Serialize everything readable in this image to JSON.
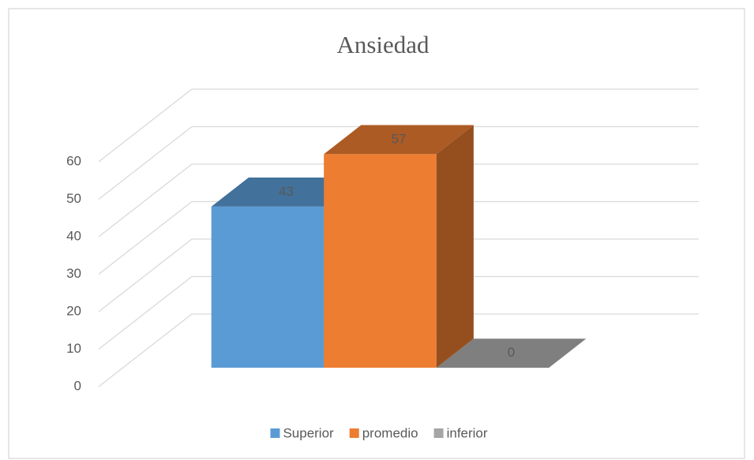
{
  "chart_data": {
    "type": "bar3d",
    "title": "Ansiedad",
    "categories": [
      null
    ],
    "series": [
      {
        "name": "Superior",
        "color": "#5b9bd5",
        "values": [
          43
        ]
      },
      {
        "name": "promedio",
        "color": "#ed7d31",
        "values": [
          57
        ]
      },
      {
        "name": "inferior",
        "color": "#a5a5a5",
        "values": [
          0
        ]
      }
    ],
    "ylim": [
      0,
      60
    ],
    "yticks": [
      0,
      10,
      20,
      30,
      40,
      50,
      60
    ],
    "grid": true,
    "legend": "bottom",
    "data_labels": true
  }
}
